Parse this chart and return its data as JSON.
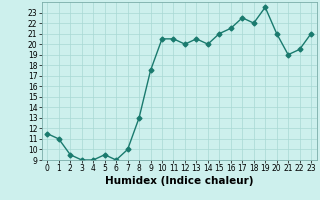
{
  "xlabel": "Humidex (Indice chaleur)",
  "x": [
    0,
    1,
    2,
    3,
    4,
    5,
    6,
    7,
    8,
    9,
    10,
    11,
    12,
    13,
    14,
    15,
    16,
    17,
    18,
    19,
    20,
    21,
    22,
    23
  ],
  "y": [
    11.5,
    11.0,
    9.5,
    9.0,
    9.0,
    9.5,
    9.0,
    10.0,
    13.0,
    17.5,
    20.5,
    20.5,
    20.0,
    20.5,
    20.0,
    21.0,
    21.5,
    22.5,
    22.0,
    23.5,
    21.0,
    19.0,
    19.5,
    21.0
  ],
  "line_color": "#1a7a6e",
  "marker": "D",
  "markersize": 2.5,
  "linewidth": 1.0,
  "ylim": [
    9,
    24
  ],
  "xlim": [
    -0.5,
    23.5
  ],
  "yticks": [
    9,
    10,
    11,
    12,
    13,
    14,
    15,
    16,
    17,
    18,
    19,
    20,
    21,
    22,
    23
  ],
  "xticks": [
    0,
    1,
    2,
    3,
    4,
    5,
    6,
    7,
    8,
    9,
    10,
    11,
    12,
    13,
    14,
    15,
    16,
    17,
    18,
    19,
    20,
    21,
    22,
    23
  ],
  "bg_color": "#cdf0ed",
  "grid_color": "#a8d8d4",
  "tick_fontsize": 5.5,
  "xlabel_fontsize": 7.5
}
